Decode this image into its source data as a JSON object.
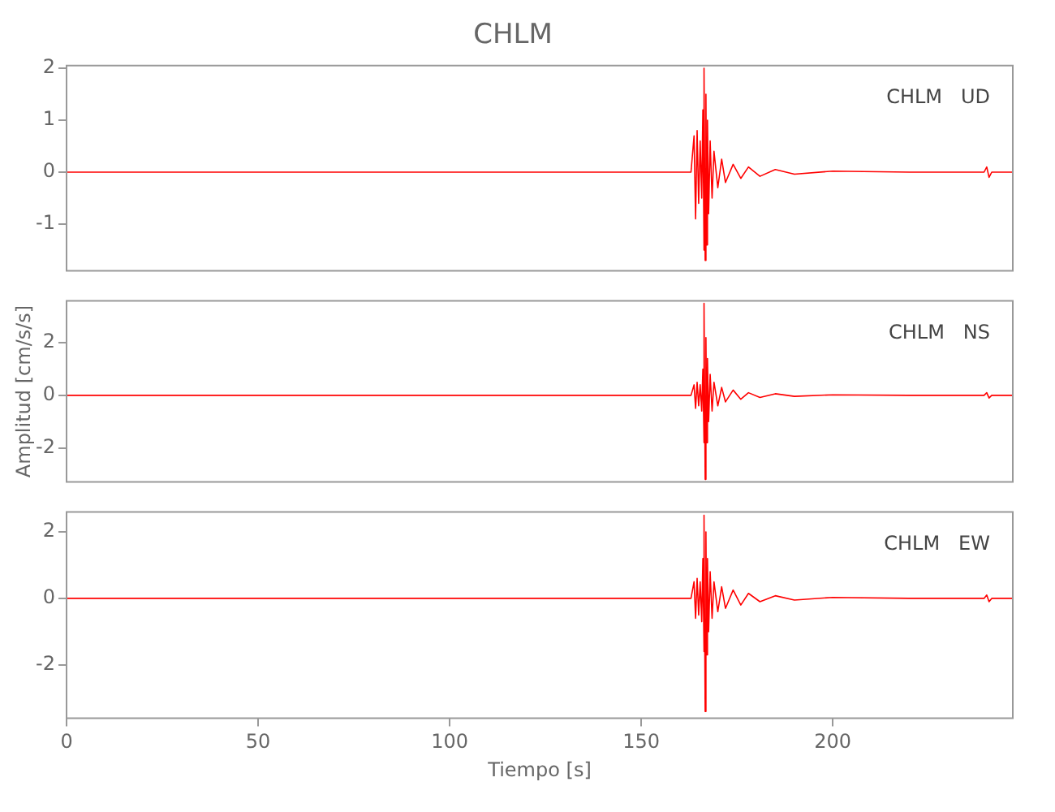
{
  "chart_data": [
    {
      "type": "line",
      "title": "CHLM",
      "annotations": [
        "CHLM   UD"
      ],
      "tick_labels": "y",
      "xlim": [
        0,
        247
      ],
      "xticks": [
        0,
        50,
        100,
        150,
        200
      ],
      "ylim": [
        -1.9,
        2.05
      ],
      "yticks": [
        -1,
        0,
        1,
        2
      ],
      "x": [
        0,
        50,
        100,
        150,
        163,
        163.8,
        164.2,
        164.6,
        165,
        165.4,
        165.8,
        166.1,
        166.3,
        166.5,
        166.7,
        166.9,
        167.1,
        167.3,
        167.6,
        168,
        168.5,
        169,
        170,
        171,
        172,
        174,
        176,
        178,
        181,
        185,
        190,
        200,
        220,
        239.5,
        240.2,
        240.8,
        241.5,
        247
      ],
      "series": [
        {
          "color": "#ff0000",
          "values": [
            0,
            0,
            0,
            0,
            0,
            0.7,
            -0.9,
            0.8,
            -0.6,
            0.6,
            -0.5,
            1.2,
            -1.5,
            2.0,
            -1.7,
            1.5,
            -1.4,
            1.0,
            -0.8,
            0.6,
            -0.5,
            0.4,
            -0.3,
            0.25,
            -0.2,
            0.15,
            -0.12,
            0.1,
            -0.08,
            0.05,
            -0.04,
            0.02,
            0,
            0,
            0.1,
            -0.1,
            0,
            0
          ]
        }
      ]
    },
    {
      "type": "line",
      "ylabel": "Amplitud [cm/s/s]",
      "annotations": [
        "CHLM   NS"
      ],
      "tick_labels": "y",
      "xlim": [
        0,
        247
      ],
      "xticks": [
        0,
        50,
        100,
        150,
        200
      ],
      "ylim": [
        -3.3,
        3.6
      ],
      "yticks": [
        -2,
        0,
        2
      ],
      "x": [
        0,
        50,
        100,
        150,
        163,
        163.8,
        164.2,
        164.6,
        165,
        165.4,
        165.8,
        166.1,
        166.3,
        166.5,
        166.7,
        166.9,
        167.1,
        167.3,
        167.6,
        168,
        168.5,
        169,
        170,
        171,
        172,
        174,
        176,
        178,
        181,
        185,
        190,
        200,
        220,
        239.5,
        240.2,
        240.8,
        241.5,
        247
      ],
      "series": [
        {
          "color": "#ff0000",
          "values": [
            0,
            0,
            0,
            0,
            0,
            0.4,
            -0.5,
            0.5,
            -0.4,
            0.4,
            -0.6,
            1.0,
            -1.8,
            3.5,
            -3.2,
            2.2,
            -1.8,
            1.4,
            -1.0,
            0.8,
            -0.6,
            0.5,
            -0.4,
            0.3,
            -0.25,
            0.2,
            -0.15,
            0.1,
            -0.08,
            0.06,
            -0.04,
            0.02,
            0,
            0,
            0.1,
            -0.1,
            0,
            0
          ]
        }
      ]
    },
    {
      "type": "line",
      "xlabel": "Tiempo [s]",
      "annotations": [
        "CHLM   EW"
      ],
      "xlim": [
        0,
        247
      ],
      "xticks": [
        0,
        50,
        100,
        150,
        200
      ],
      "ylim": [
        -3.6,
        2.6
      ],
      "yticks": [
        -2,
        0,
        2
      ],
      "x": [
        0,
        50,
        100,
        150,
        163,
        163.8,
        164.2,
        164.6,
        165,
        165.4,
        165.8,
        166.1,
        166.3,
        166.5,
        166.7,
        166.9,
        167.1,
        167.3,
        167.6,
        168,
        168.5,
        169,
        170,
        171,
        172,
        174,
        176,
        178,
        181,
        185,
        190,
        200,
        220,
        239.5,
        240.2,
        240.8,
        241.5,
        247
      ],
      "series": [
        {
          "color": "#ff0000",
          "values": [
            0,
            0,
            0,
            0,
            0,
            0.5,
            -0.6,
            0.6,
            -0.5,
            0.5,
            -0.7,
            1.2,
            -1.6,
            2.5,
            -3.4,
            2.0,
            -1.7,
            1.2,
            -1.0,
            0.8,
            -0.6,
            0.5,
            -0.4,
            0.35,
            -0.3,
            0.25,
            -0.2,
            0.15,
            -0.1,
            0.08,
            -0.05,
            0.03,
            0,
            0,
            0.1,
            -0.1,
            0,
            0
          ]
        }
      ]
    }
  ]
}
